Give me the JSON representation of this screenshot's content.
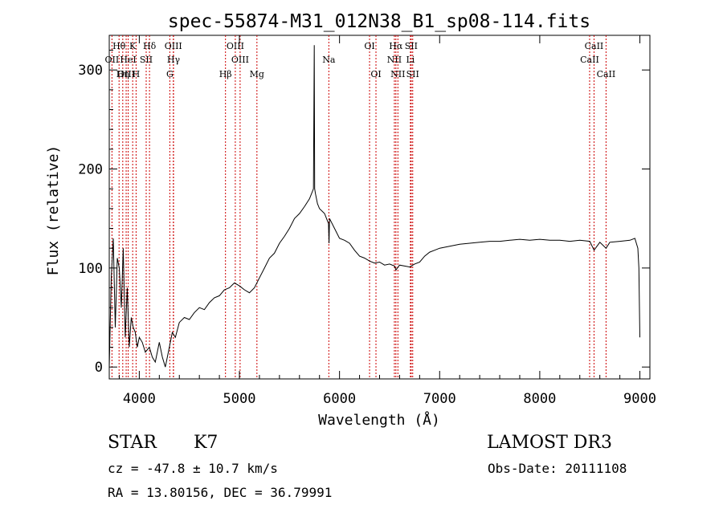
{
  "chart_data": {
    "type": "line",
    "title": "spec-55874-M31_012N38_B1_sp08-114.fits",
    "xlabel": "Wavelength (Å)",
    "ylabel": "Flux (relative)",
    "xlim": [
      3700,
      9100
    ],
    "ylim": [
      -12,
      335
    ],
    "xticks": [
      4000,
      5000,
      6000,
      7000,
      8000,
      9000
    ],
    "yticks": [
      0,
      100,
      200,
      300
    ],
    "line_color": "#000000",
    "marker_color": "#cc0000",
    "series": [
      {
        "name": "flux",
        "x": [
          3700,
          3720,
          3740,
          3760,
          3780,
          3800,
          3820,
          3840,
          3860,
          3880,
          3900,
          3920,
          3940,
          3960,
          3980,
          4000,
          4030,
          4060,
          4100,
          4130,
          4160,
          4200,
          4230,
          4260,
          4300,
          4330,
          4360,
          4400,
          4450,
          4500,
          4550,
          4600,
          4650,
          4700,
          4750,
          4800,
          4850,
          4900,
          4950,
          5000,
          5050,
          5100,
          5150,
          5200,
          5250,
          5300,
          5350,
          5400,
          5450,
          5500,
          5550,
          5600,
          5650,
          5700,
          5740,
          5748,
          5752,
          5760,
          5780,
          5800,
          5850,
          5890,
          5895,
          5900,
          5950,
          6000,
          6050,
          6100,
          6150,
          6200,
          6250,
          6300,
          6350,
          6400,
          6450,
          6500,
          6550,
          6563,
          6600,
          6650,
          6700,
          6750,
          6800,
          6850,
          6900,
          6950,
          7000,
          7050,
          7100,
          7150,
          7200,
          7300,
          7400,
          7500,
          7600,
          7700,
          7800,
          7900,
          8000,
          8100,
          8200,
          8300,
          8400,
          8500,
          8542,
          8600,
          8662,
          8700,
          8800,
          8900,
          8950,
          8980,
          8990,
          9000
        ],
        "y": [
          0,
          90,
          130,
          40,
          110,
          100,
          60,
          120,
          30,
          80,
          20,
          50,
          40,
          35,
          20,
          30,
          25,
          15,
          20,
          10,
          5,
          25,
          10,
          0,
          20,
          35,
          30,
          45,
          50,
          48,
          55,
          60,
          58,
          65,
          70,
          72,
          78,
          80,
          85,
          82,
          78,
          75,
          80,
          90,
          100,
          110,
          115,
          125,
          132,
          140,
          150,
          155,
          162,
          170,
          180,
          325,
          180,
          175,
          165,
          160,
          155,
          145,
          125,
          150,
          140,
          130,
          128,
          125,
          118,
          112,
          110,
          107,
          105,
          106,
          103,
          104,
          102,
          98,
          103,
          102,
          101,
          104,
          106,
          112,
          116,
          118,
          120,
          121,
          122,
          123,
          124,
          125,
          126,
          127,
          127,
          128,
          129,
          128,
          129,
          128,
          128,
          127,
          128,
          127,
          118,
          126,
          120,
          126,
          127,
          128,
          130,
          120,
          100,
          30
        ]
      }
    ],
    "lines": [
      {
        "name": "Hθ",
        "x": 3798,
        "row": 1
      },
      {
        "name": "OII",
        "x": 3727,
        "row": 2
      },
      {
        "name": "OIII",
        "x": 3869,
        "row": 3
      },
      {
        "name": "HeI",
        "x": 3889,
        "row": 2
      },
      {
        "name": "Hη",
        "x": 3835,
        "row": 3
      },
      {
        "name": "K",
        "x": 3934,
        "row": 1
      },
      {
        "name": "H",
        "x": 3968,
        "row": 3
      },
      {
        "name": "SII",
        "x": 4069,
        "row": 2
      },
      {
        "name": "Hδ",
        "x": 4102,
        "row": 1
      },
      {
        "name": "OIII",
        "x": 4340,
        "row": 1
      },
      {
        "name": "Hγ",
        "x": 4342,
        "row": 2
      },
      {
        "name": "G",
        "x": 4305,
        "row": 3
      },
      {
        "name": "Hβ",
        "x": 4861,
        "row": 3
      },
      {
        "name": "OIII",
        "x": 4959,
        "row": 1
      },
      {
        "name": "OIII",
        "x": 5007,
        "row": 2
      },
      {
        "name": "Mg",
        "x": 5175,
        "row": 3
      },
      {
        "name": "Na",
        "x": 5893,
        "row": 2
      },
      {
        "name": "OI",
        "x": 6300,
        "row": 1
      },
      {
        "name": "OI",
        "x": 6364,
        "row": 3
      },
      {
        "name": "Hα",
        "x": 6563,
        "row": 1
      },
      {
        "name": "NII",
        "x": 6548,
        "row": 2
      },
      {
        "name": "NII",
        "x": 6583,
        "row": 3
      },
      {
        "name": "SII",
        "x": 6716,
        "row": 1
      },
      {
        "name": "Li",
        "x": 6708,
        "row": 2
      },
      {
        "name": "SII",
        "x": 6731,
        "row": 3
      },
      {
        "name": "CaII",
        "x": 8542,
        "row": 1
      },
      {
        "name": "CaII",
        "x": 8498,
        "row": 2
      },
      {
        "name": "CaII",
        "x": 8662,
        "row": 3
      }
    ]
  },
  "info": {
    "class": "STAR",
    "subclass": "K7",
    "survey": "LAMOST DR3",
    "cz": "cz = -47.8 ± 10.7 km/s",
    "obs_date": "Obs-Date: 20111108",
    "radec": "RA =  13.80156, DEC =  36.79991"
  }
}
